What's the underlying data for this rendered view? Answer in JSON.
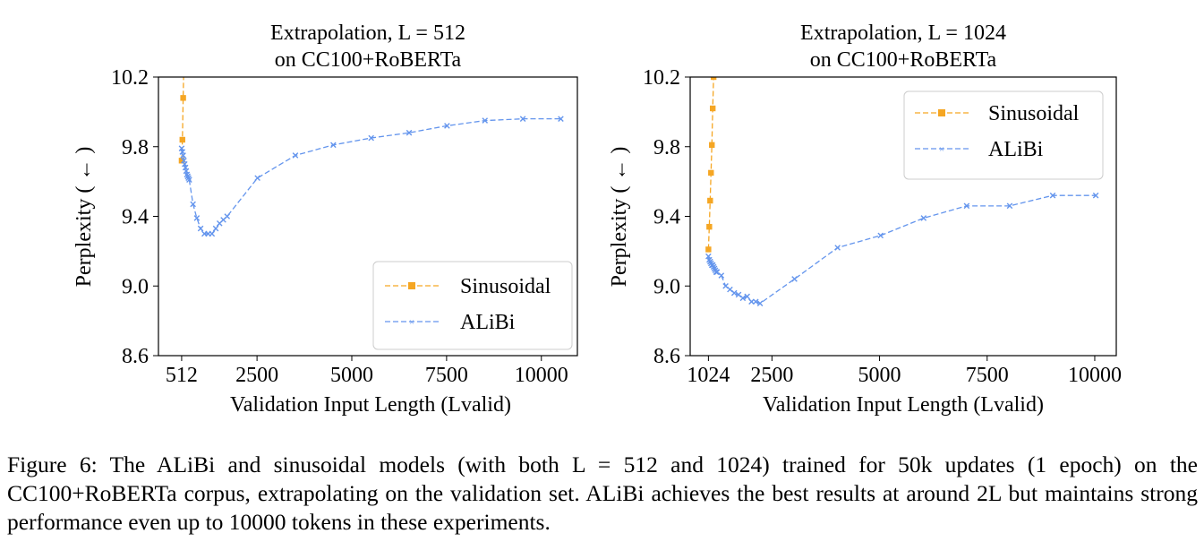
{
  "caption": "Figure 6: The ALiBi and sinusoidal models (with both L = 512 and 1024) trained for 50k updates (1 epoch) on the CC100+RoBERTa corpus, extrapolating on the validation set. ALiBi achieves the best results at around 2L but maintains strong performance even up to 10000 tokens in these experiments.",
  "colors": {
    "sinusoidal": "#f5a623",
    "alibi": "#6495ed"
  },
  "chart_data": [
    {
      "type": "line",
      "title": [
        "Extrapolation, L = 512",
        "on CC100+RoBERTa"
      ],
      "xlabel": "Validation Input Length (Lvalid)",
      "ylabel": "Perplexity ( ← )",
      "xlim": [
        -100,
        10950
      ],
      "ylim": [
        8.6,
        10.2
      ],
      "xticks": [
        512,
        2500,
        5000,
        7500,
        10000
      ],
      "yticks": [
        8.6,
        9.0,
        9.4,
        9.8,
        10.2
      ],
      "legend_position": "lower-right",
      "series": [
        {
          "name": "Sinusoidal",
          "marker": "square",
          "x": [
            512,
            532,
            552,
            572
          ],
          "y": [
            9.72,
            9.84,
            10.08,
            10.3
          ]
        },
        {
          "name": "ALiBi",
          "marker": "x",
          "x": [
            512,
            532,
            552,
            572,
            592,
            612,
            632,
            652,
            672,
            692,
            712,
            812,
            912,
            1012,
            1112,
            1212,
            1312,
            1412,
            1512,
            1612,
            1712,
            2512,
            3512,
            4512,
            5512,
            6512,
            7512,
            8512,
            9512,
            10512
          ],
          "y": [
            9.79,
            9.77,
            9.75,
            9.72,
            9.7,
            9.68,
            9.66,
            9.64,
            9.63,
            9.62,
            9.61,
            9.47,
            9.39,
            9.33,
            9.3,
            9.3,
            9.3,
            9.33,
            9.36,
            9.38,
            9.4,
            9.62,
            9.75,
            9.81,
            9.85,
            9.88,
            9.92,
            9.95,
            9.96,
            9.96
          ]
        }
      ]
    },
    {
      "type": "line",
      "title": [
        "Extrapolation, L = 1024",
        "on CC100+RoBERTa"
      ],
      "xlabel": "Validation Input Length (Lvalid)",
      "ylabel": "Perplexity ( ← )",
      "xlim": [
        600,
        10500
      ],
      "ylim": [
        8.6,
        10.2
      ],
      "xticks": [
        1024,
        2500,
        5000,
        7500,
        10000
      ],
      "yticks": [
        8.6,
        9.0,
        9.4,
        9.8,
        10.2
      ],
      "legend_position": "upper-right",
      "series": [
        {
          "name": "Sinusoidal",
          "marker": "square",
          "x": [
            1024,
            1044,
            1064,
            1084,
            1104,
            1124,
            1144,
            1164
          ],
          "y": [
            9.21,
            9.34,
            9.49,
            9.65,
            9.81,
            10.02,
            10.2,
            10.3
          ]
        },
        {
          "name": "ALiBi",
          "marker": "x",
          "x": [
            1024,
            1044,
            1064,
            1084,
            1104,
            1124,
            1144,
            1164,
            1184,
            1204,
            1224,
            1324,
            1424,
            1524,
            1624,
            1724,
            1824,
            1924,
            2024,
            2124,
            2224,
            3024,
            4024,
            5024,
            6024,
            7024,
            8024,
            9024,
            10024
          ],
          "y": [
            9.17,
            9.15,
            9.14,
            9.13,
            9.12,
            9.12,
            9.11,
            9.1,
            9.09,
            9.08,
            9.08,
            9.06,
            9.0,
            8.98,
            8.96,
            8.95,
            8.93,
            8.94,
            8.91,
            8.91,
            8.9,
            9.04,
            9.22,
            9.29,
            9.39,
            9.46,
            9.46,
            9.52,
            9.52
          ]
        }
      ]
    }
  ]
}
